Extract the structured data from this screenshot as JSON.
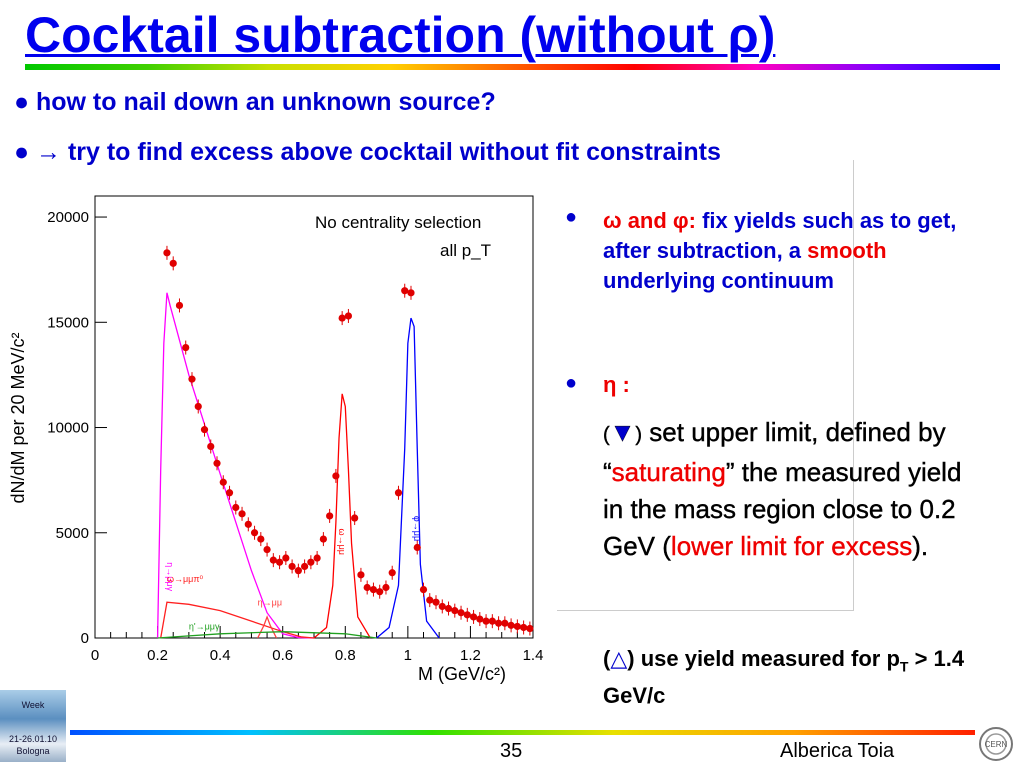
{
  "slide": {
    "title": "Cocktail subtraction (without ρ)",
    "bullets": [
      "how to nail down an unknown source?",
      "→ try to find excess above cocktail without fit constraints"
    ],
    "right": {
      "b1_red": "ω and φ:",
      "b1_blue": " fix yields such as to get, after subtraction, a ",
      "b1_red2": "smooth",
      "b1_blue2": " underlying continuum",
      "b2": "η :",
      "b3_sym": "▼",
      "b3_a": " set upper limit, defined by “",
      "b3_red": "saturating",
      "b3_b": "” the measured yield in the mass region close to 0.2 GeV (",
      "b3_red2": "lower limit for excess",
      "b3_c": ").",
      "b4_sym": "△",
      "b4_a": " use yield measured for p",
      "b4_sub": "T",
      "b4_b": " > 1.4 GeV/c"
    },
    "footer": {
      "page": "35",
      "author": "Alberica Toia"
    },
    "logo": {
      "line1": "Week",
      "line2": "21-26.01.10",
      "line3": "Bologna"
    }
  },
  "chart_data": {
    "type": "scatter",
    "xlabel": "M (GeV/c²)",
    "ylabel": "dN/dM per 20 MeV/c²",
    "xlim": [
      0,
      1.4
    ],
    "ylim": [
      0,
      21000
    ],
    "xticks": [
      "0",
      "0.2",
      "0.4",
      "0.6",
      "0.8",
      "1",
      "1.2",
      "1.4"
    ],
    "yticks": [
      "0",
      "5000",
      "10000",
      "15000",
      "20000"
    ],
    "annotations": [
      "No centrality selection",
      "all p_T"
    ],
    "data_points": {
      "x": [
        0.23,
        0.25,
        0.27,
        0.29,
        0.31,
        0.33,
        0.35,
        0.37,
        0.39,
        0.41,
        0.43,
        0.45,
        0.47,
        0.49,
        0.51,
        0.53,
        0.55,
        0.57,
        0.59,
        0.61,
        0.63,
        0.65,
        0.67,
        0.69,
        0.71,
        0.73,
        0.75,
        0.77,
        0.79,
        0.81,
        0.83,
        0.85,
        0.87,
        0.89,
        0.91,
        0.93,
        0.95,
        0.97,
        0.99,
        1.01,
        1.03,
        1.05,
        1.07,
        1.09,
        1.11,
        1.13,
        1.15,
        1.17,
        1.19,
        1.21,
        1.23,
        1.25,
        1.27,
        1.29,
        1.31,
        1.33,
        1.35,
        1.37,
        1.39
      ],
      "y": [
        18300,
        17800,
        15800,
        13800,
        12300,
        11000,
        9900,
        9100,
        8300,
        7400,
        6900,
        6200,
        5900,
        5400,
        5000,
        4700,
        4200,
        3700,
        3600,
        3800,
        3400,
        3200,
        3400,
        3600,
        3800,
        4700,
        5800,
        7700,
        15200,
        15300,
        5700,
        3000,
        2400,
        2300,
        2200,
        2400,
        3100,
        6900,
        16500,
        16400,
        4300,
        2300,
        1800,
        1700,
        1500,
        1400,
        1300,
        1200,
        1100,
        1000,
        900,
        800,
        800,
        700,
        700,
        600,
        550,
        500,
        450
      ]
    },
    "series": [
      {
        "name": "η→μμγ",
        "color": "#ff00ff",
        "x": [
          0.2,
          0.21,
          0.22,
          0.23,
          0.24,
          0.3,
          0.4,
          0.5,
          0.55,
          0.6,
          0.65,
          0.7
        ],
        "y": [
          0,
          8000,
          14000,
          16400,
          15800,
          12500,
          7800,
          3200,
          1200,
          200,
          20,
          0
        ]
      },
      {
        "name": "ω→μμ",
        "color": "#ff0000",
        "x": [
          0.7,
          0.74,
          0.76,
          0.77,
          0.78,
          0.79,
          0.8,
          0.81,
          0.82,
          0.84,
          0.88
        ],
        "y": [
          0,
          500,
          2500,
          5500,
          9500,
          11600,
          11000,
          8000,
          4500,
          1000,
          0
        ]
      },
      {
        "name": "φ→μμ",
        "color": "#0000ff",
        "x": [
          0.9,
          0.94,
          0.97,
          0.99,
          1.0,
          1.01,
          1.02,
          1.03,
          1.04,
          1.06,
          1.1
        ],
        "y": [
          0,
          500,
          2500,
          9000,
          14000,
          15200,
          14800,
          9000,
          3500,
          800,
          0
        ]
      },
      {
        "name": "ω→μμπ⁰",
        "color": "#ff2020",
        "x": [
          0.21,
          0.23,
          0.3,
          0.4,
          0.5,
          0.6,
          0.66,
          0.7
        ],
        "y": [
          0,
          1700,
          1600,
          1300,
          800,
          300,
          50,
          0
        ]
      },
      {
        "name": "η→μμ",
        "color": "#ff4040",
        "x": [
          0.52,
          0.54,
          0.55,
          0.56,
          0.58
        ],
        "y": [
          0,
          600,
          1000,
          600,
          0
        ]
      },
      {
        "name": "η'→μμγ",
        "color": "#20a020",
        "x": [
          0.2,
          0.4,
          0.6,
          0.8,
          0.9
        ],
        "y": [
          0,
          200,
          300,
          200,
          0
        ]
      }
    ]
  }
}
